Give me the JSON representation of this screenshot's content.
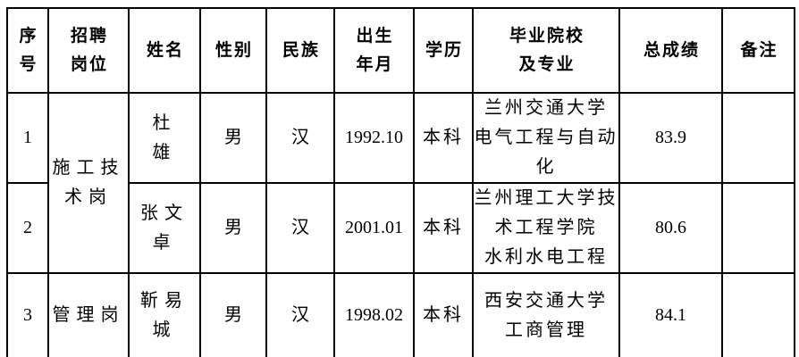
{
  "page": {
    "background_color": "#ffffff",
    "text_color": "#000000",
    "border_color": "#000000"
  },
  "table": {
    "columns": [
      {
        "key": "no",
        "label": "序\n号"
      },
      {
        "key": "position",
        "label": "招聘\n岗位"
      },
      {
        "key": "name",
        "label": "姓名"
      },
      {
        "key": "gender",
        "label": "性别"
      },
      {
        "key": "ethnicity",
        "label": "民族"
      },
      {
        "key": "birth",
        "label": "出生\n年月"
      },
      {
        "key": "education",
        "label": "学历"
      },
      {
        "key": "school",
        "label": "毕业院校\n及专业"
      },
      {
        "key": "score",
        "label": "总成绩"
      },
      {
        "key": "remark",
        "label": "备注"
      }
    ],
    "rows": [
      {
        "no": "1",
        "position": "施工技\n术岗",
        "position_rowspan": 2,
        "name": "杜　雄",
        "gender": "男",
        "ethnicity": "汉",
        "birth": "1992.10",
        "education": "本科",
        "school": "兰州交通大学\n电气工程与自动\n化",
        "score": "83.9",
        "remark": ""
      },
      {
        "no": "2",
        "name": "张文卓",
        "gender": "男",
        "ethnicity": "汉",
        "birth": "2001.01",
        "education": "本科",
        "school": "兰州理工大学技\n术工程学院\n水利水电工程",
        "score": "80.6",
        "remark": ""
      },
      {
        "no": "3",
        "position": "管理岗",
        "name": "靳易城",
        "gender": "男",
        "ethnicity": "汉",
        "birth": "1998.02",
        "education": "本科",
        "school": "西安交通大学\n工商管理",
        "score": "84.1",
        "remark": ""
      }
    ]
  }
}
